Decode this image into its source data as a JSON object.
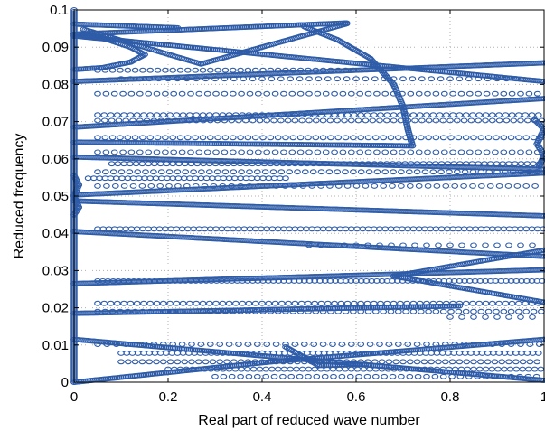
{
  "chart_data": {
    "type": "scatter",
    "title": "",
    "xlabel": "Real part of reduced wave number",
    "ylabel": "Reduced frequency",
    "xlim": [
      0,
      1
    ],
    "ylim": [
      0,
      0.1
    ],
    "x_ticks": [
      "0",
      "0.2",
      "0.4",
      "0.6",
      "0.8",
      "1"
    ],
    "y_ticks": [
      "0",
      "0.01",
      "0.02",
      "0.03",
      "0.04",
      "0.05",
      "0.06",
      "0.07",
      "0.08",
      "0.09",
      "0.1"
    ],
    "grid": true,
    "marker": "open-circle",
    "color": "#2e5ca8",
    "dense_segments": [
      {
        "x": [
          0.0,
          0.0
        ],
        "y": [
          0.0,
          0.1
        ]
      },
      {
        "x": [
          0.0,
          0.42
        ],
        "y": [
          0.0,
          0.0055
        ]
      },
      {
        "x": [
          0.42,
          1.0
        ],
        "y": [
          0.0055,
          0.0115
        ]
      },
      {
        "x": [
          0.0,
          1.0
        ],
        "y": [
          0.0115,
          0.0005
        ]
      },
      {
        "x": [
          0.0,
          0.82
        ],
        "y": [
          0.0185,
          0.0205
        ]
      },
      {
        "x": [
          0.0,
          1.0
        ],
        "y": [
          0.0265,
          0.0302
        ]
      },
      {
        "x": [
          0.0,
          1.0
        ],
        "y": [
          0.0405,
          0.0338
        ]
      },
      {
        "x": [
          0.0,
          1.0
        ],
        "y": [
          0.0487,
          0.0447
        ]
      },
      {
        "x": [
          0.0,
          1.0
        ],
        "y": [
          0.0503,
          0.0562
        ]
      },
      {
        "x": [
          0.0,
          1.0
        ],
        "y": [
          0.0605,
          0.0572
        ]
      },
      {
        "x": [
          0.0,
          0.72
        ],
        "y": [
          0.0645,
          0.0635
        ]
      },
      {
        "x": [
          0.0,
          1.0
        ],
        "y": [
          0.0685,
          0.0762
        ]
      },
      {
        "x": [
          0.0,
          1.0
        ],
        "y": [
          0.0808,
          0.0858
        ]
      },
      {
        "x": [
          0.0,
          1.0
        ],
        "y": [
          0.093,
          0.0808
        ]
      },
      {
        "x": [
          0.0,
          0.58
        ],
        "y": [
          0.0935,
          0.0965
        ]
      },
      {
        "x": [
          0.02,
          0.27
        ],
        "y": [
          0.0948,
          0.0855
        ]
      },
      {
        "x": [
          0.27,
          0.58
        ],
        "y": [
          0.0855,
          0.0963
        ]
      },
      {
        "x": [
          0.0,
          0.22
        ],
        "y": [
          0.0962,
          0.0952
        ]
      },
      {
        "x": [
          0.45,
          0.52
        ],
        "y": [
          0.0095,
          0.0045
        ]
      },
      {
        "x": [
          0.52,
          0.62
        ],
        "y": [
          0.0045,
          0.0048
        ]
      },
      {
        "x": [
          1.0,
          0.68
        ],
        "y": [
          0.0355,
          0.0285
        ]
      },
      {
        "x": [
          0.68,
          1.0
        ],
        "y": [
          0.0285,
          0.0215
        ]
      }
    ],
    "curved_branches": [
      {
        "x": [
          0.49,
          0.56,
          0.63,
          0.68,
          0.7,
          0.71,
          0.72
        ],
        "y": [
          0.0955,
          0.092,
          0.087,
          0.08,
          0.074,
          0.068,
          0.0635
        ]
      },
      {
        "x": [
          0.0,
          0.06,
          0.12,
          0.15,
          0.12,
          0.06,
          0.0
        ],
        "y": [
          0.0935,
          0.0925,
          0.09,
          0.088,
          0.086,
          0.0845,
          0.084
        ]
      },
      {
        "x": [
          0.98,
          1.0,
          0.985,
          1.0,
          0.99
        ],
        "y": [
          0.0705,
          0.068,
          0.064,
          0.061,
          0.058
        ]
      },
      {
        "x": [
          0.0,
          0.01,
          0.0,
          0.01,
          0.0
        ],
        "y": [
          0.0555,
          0.053,
          0.05,
          0.047,
          0.045
        ]
      }
    ],
    "sparse_rows": [
      {
        "y": 0.0838,
        "x_start": 0.05,
        "x_end": 0.6,
        "step": 0.016
      },
      {
        "y": 0.0815,
        "x_start": 0.1,
        "x_end": 0.95,
        "step": 0.02
      },
      {
        "y": 0.0775,
        "x_start": 0.05,
        "x_end": 1.0,
        "step": 0.018
      },
      {
        "y": 0.0718,
        "x_start": 0.05,
        "x_end": 1.0,
        "step": 0.014
      },
      {
        "y": 0.0703,
        "x_start": 0.05,
        "x_end": 1.0,
        "step": 0.015
      },
      {
        "y": 0.0657,
        "x_start": 0.05,
        "x_end": 1.0,
        "step": 0.016
      },
      {
        "y": 0.0618,
        "x_start": 0.05,
        "x_end": 1.0,
        "step": 0.018
      },
      {
        "y": 0.0587,
        "x_start": 0.08,
        "x_end": 1.0,
        "step": 0.013
      },
      {
        "y": 0.0565,
        "x_start": 0.05,
        "x_end": 1.0,
        "step": 0.017
      },
      {
        "y": 0.0548,
        "x_start": 0.03,
        "x_end": 0.45,
        "step": 0.012
      },
      {
        "y": 0.0527,
        "x_start": 0.05,
        "x_end": 1.0,
        "step": 0.019
      },
      {
        "y": 0.0412,
        "x_start": 0.05,
        "x_end": 1.0,
        "step": 0.012
      },
      {
        "y": 0.0368,
        "x_start": 0.5,
        "x_end": 1.0,
        "step": 0.025
      },
      {
        "y": 0.0272,
        "x_start": 0.05,
        "x_end": 1.0,
        "step": 0.011
      },
      {
        "y": 0.0212,
        "x_start": 0.05,
        "x_end": 1.0,
        "step": 0.014
      },
      {
        "y": 0.019,
        "x_start": 0.05,
        "x_end": 1.0,
        "step": 0.016
      },
      {
        "y": 0.0175,
        "x_start": 0.8,
        "x_end": 1.0,
        "step": 0.025
      },
      {
        "y": 0.0102,
        "x_start": 0.05,
        "x_end": 1.0,
        "step": 0.02
      },
      {
        "y": 0.0078,
        "x_start": 0.1,
        "x_end": 1.0,
        "step": 0.012
      },
      {
        "y": 0.0055,
        "x_start": 0.1,
        "x_end": 1.0,
        "step": 0.015
      },
      {
        "y": 0.0035,
        "x_start": 0.2,
        "x_end": 1.0,
        "step": 0.013
      },
      {
        "y": 0.0015,
        "x_start": 0.3,
        "x_end": 1.0,
        "step": 0.018
      }
    ]
  }
}
